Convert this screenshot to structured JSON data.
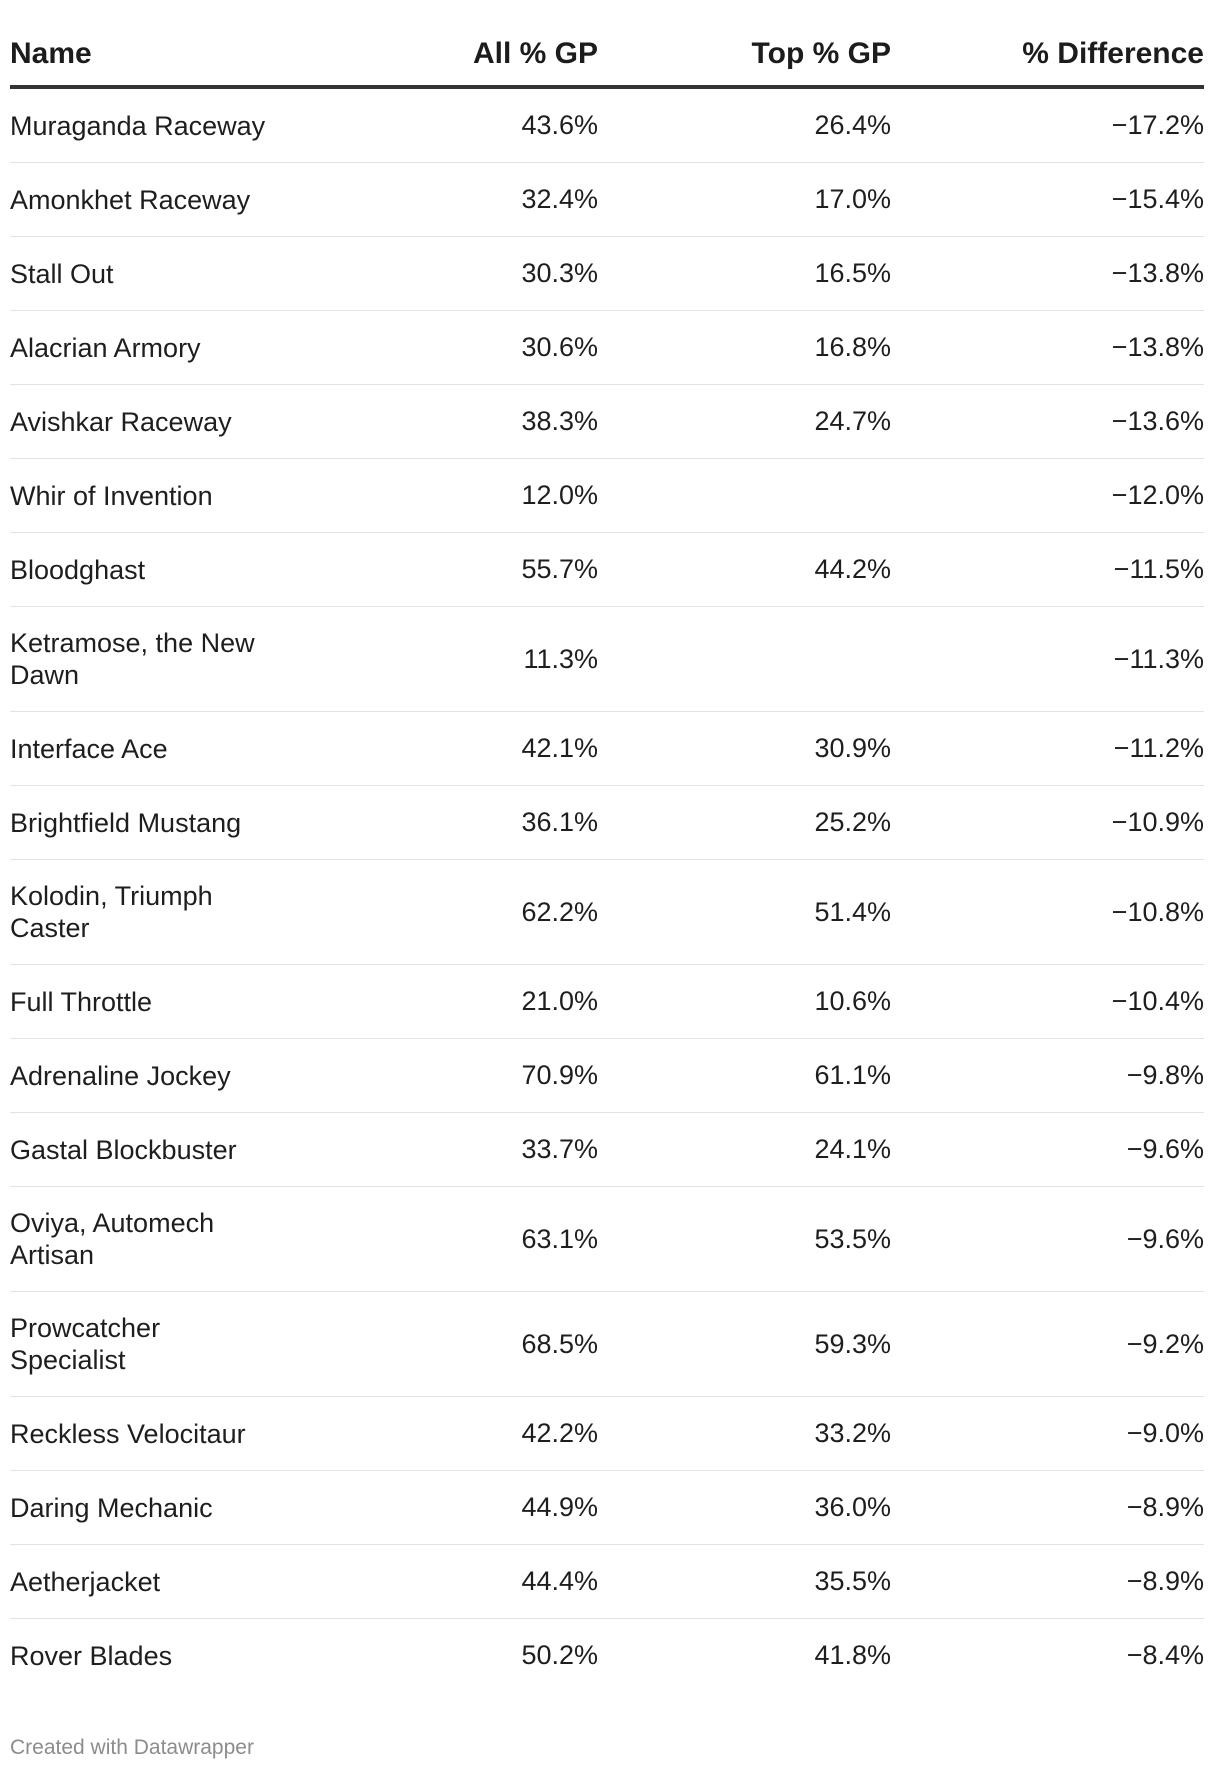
{
  "chart_data": {
    "type": "table",
    "columns": [
      "Name",
      "All % GP",
      "Top % GP",
      "% Difference"
    ],
    "rows": [
      {
        "name": "Muraganda Raceway",
        "all": "43.6%",
        "top": "26.4%",
        "diff": "−17.2%"
      },
      {
        "name": "Amonkhet Raceway",
        "all": "32.4%",
        "top": "17.0%",
        "diff": "−15.4%"
      },
      {
        "name": "Stall Out",
        "all": "30.3%",
        "top": "16.5%",
        "diff": "−13.8%"
      },
      {
        "name": "Alacrian Armory",
        "all": "30.6%",
        "top": "16.8%",
        "diff": "−13.8%"
      },
      {
        "name": "Avishkar Raceway",
        "all": "38.3%",
        "top": "24.7%",
        "diff": "−13.6%"
      },
      {
        "name": "Whir of Invention",
        "all": "12.0%",
        "top": "",
        "diff": "−12.0%"
      },
      {
        "name": "Bloodghast",
        "all": "55.7%",
        "top": "44.2%",
        "diff": "−11.5%"
      },
      {
        "name": "Ketramose, the New Dawn",
        "all": "11.3%",
        "top": "",
        "diff": "−11.3%"
      },
      {
        "name": "Interface Ace",
        "all": "42.1%",
        "top": "30.9%",
        "diff": "−11.2%"
      },
      {
        "name": "Brightfield Mustang",
        "all": "36.1%",
        "top": "25.2%",
        "diff": "−10.9%"
      },
      {
        "name": "Kolodin, Triumph Caster",
        "all": "62.2%",
        "top": "51.4%",
        "diff": "−10.8%"
      },
      {
        "name": "Full Throttle",
        "all": "21.0%",
        "top": "10.6%",
        "diff": "−10.4%"
      },
      {
        "name": "Adrenaline Jockey",
        "all": "70.9%",
        "top": "61.1%",
        "diff": "−9.8%"
      },
      {
        "name": "Gastal Blockbuster",
        "all": "33.7%",
        "top": "24.1%",
        "diff": "−9.6%"
      },
      {
        "name": "Oviya, Automech Artisan",
        "all": "63.1%",
        "top": "53.5%",
        "diff": "−9.6%"
      },
      {
        "name": "Prowcatcher Specialist",
        "all": "68.5%",
        "top": "59.3%",
        "diff": "−9.2%"
      },
      {
        "name": "Reckless Velocitaur",
        "all": "42.2%",
        "top": "33.2%",
        "diff": "−9.0%"
      },
      {
        "name": "Daring Mechanic",
        "all": "44.9%",
        "top": "36.0%",
        "diff": "−8.9%"
      },
      {
        "name": "Aetherjacket",
        "all": "44.4%",
        "top": "35.5%",
        "diff": "−8.9%"
      },
      {
        "name": "Rover Blades",
        "all": "50.2%",
        "top": "41.8%",
        "diff": "−8.4%"
      }
    ]
  },
  "footer": {
    "credit": "Created with Datawrapper"
  },
  "colors": {
    "text": "#1e1e1e",
    "header_rule": "#333333",
    "row_rule": "#e3e3e3",
    "footer_text": "#8c8c8c"
  }
}
